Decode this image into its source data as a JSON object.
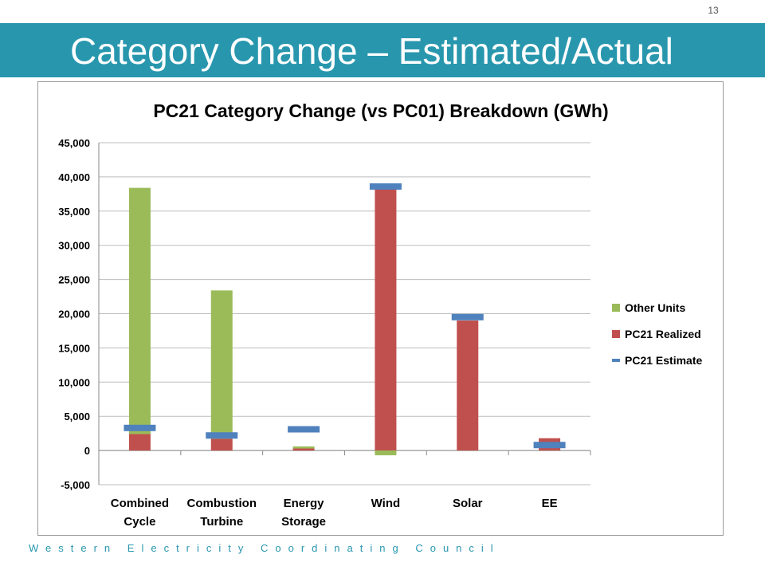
{
  "slide": {
    "page_number": "13",
    "title": "Category Change – Estimated/Actual",
    "footer": "Western Electricity Coordinating Council"
  },
  "colors": {
    "title_band": "#2897ae",
    "other_units": "#9bbb59",
    "pc21_realized": "#c0504d",
    "pc21_estimate": "#4f81bd",
    "footer_text": "#2897ae"
  },
  "chart_data": {
    "type": "bar",
    "stacked": true,
    "title": "PC21 Category Change (vs PC01) Breakdown (GWh)",
    "categories": [
      [
        "Combined",
        "Cycle"
      ],
      [
        "Combustion",
        "Turbine"
      ],
      [
        "Energy",
        "Storage"
      ],
      [
        "Wind"
      ],
      [
        "Solar"
      ],
      [
        "EE"
      ]
    ],
    "series": [
      {
        "name": "PC21 Realized",
        "kind": "bar",
        "color": "#c0504d",
        "values": [
          2400,
          1700,
          300,
          38700,
          19000,
          1800
        ]
      },
      {
        "name": "Other Units",
        "kind": "bar",
        "color": "#9bbb59",
        "values": [
          36000,
          21700,
          300,
          -700,
          0,
          0
        ]
      },
      {
        "name": "PC21 Estimate",
        "kind": "marker",
        "color": "#4f81bd",
        "values": [
          3300,
          2200,
          3100,
          38600,
          19500,
          800
        ]
      }
    ],
    "legend_order": [
      "Other Units",
      "PC21 Realized",
      "PC21 Estimate"
    ],
    "legend_position": "right",
    "ylim": [
      -5000,
      45000
    ],
    "yticks": [
      45000,
      40000,
      35000,
      30000,
      25000,
      20000,
      15000,
      10000,
      5000,
      0,
      -5000
    ],
    "ytick_labels": [
      "45,000",
      "40,000",
      "35,000",
      "30,000",
      "25,000",
      "20,000",
      "15,000",
      "10,000",
      "5,000",
      "0",
      "-5,000"
    ],
    "grid": true,
    "xlabel": "",
    "ylabel": ""
  }
}
